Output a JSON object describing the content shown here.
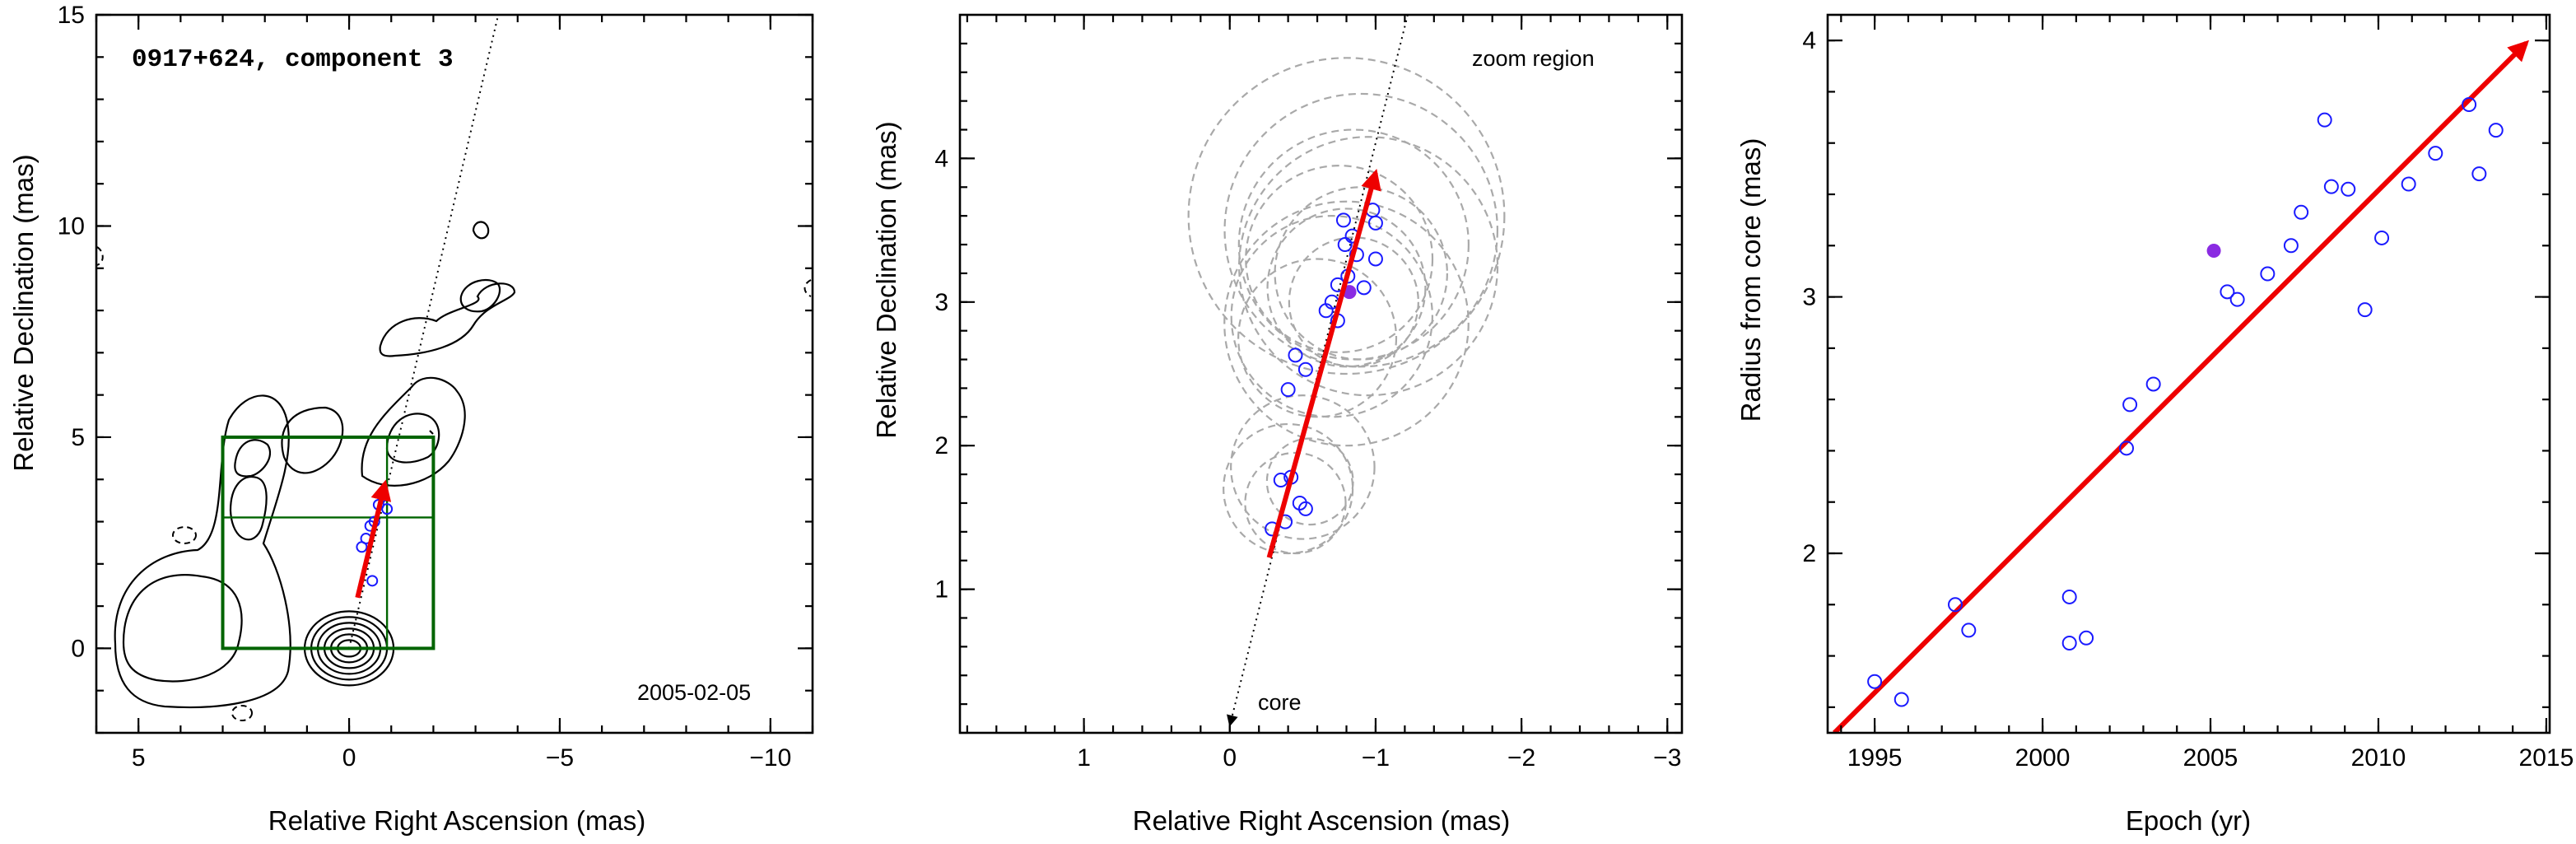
{
  "chart_data": [
    {
      "type": "contour",
      "title": "0917+624, component 3",
      "annotation": "2005-02-05",
      "xlabel": "Relative Right Ascension (mas)",
      "ylabel": "Relative Declination (mas)",
      "xlim": [
        6,
        -11
      ],
      "ylim": [
        -2,
        15
      ],
      "x_ticks": [
        5,
        0,
        -5,
        -10
      ],
      "y_ticks": [
        0,
        5,
        10,
        15
      ],
      "x_tick_labels": [
        "5",
        "0",
        "−5",
        "−10"
      ],
      "y_tick_labels": [
        "0",
        "5",
        "10",
        "15"
      ],
      "zoom_box": {
        "x": [
          3,
          -2
        ],
        "y": [
          0,
          5
        ],
        "crosshair": [
          0.9,
          3.1
        ]
      },
      "trajectory_arrow": {
        "from": [
          -0.2,
          1.2
        ],
        "to": [
          -0.85,
          3.9
        ]
      },
      "jet_axis_line": {
        "from": [
          0,
          0
        ],
        "to": [
          -5.9,
          25
        ]
      },
      "component_positions": [
        {
          "x": -0.8,
          "y": 3.6
        },
        {
          "x": -0.9,
          "y": 3.3
        },
        {
          "x": -0.6,
          "y": 3.0
        },
        {
          "x": -0.4,
          "y": 2.6
        },
        {
          "x": -0.7,
          "y": 3.4
        },
        {
          "x": -0.5,
          "y": 2.9
        },
        {
          "x": -0.3,
          "y": 2.4
        },
        {
          "x": -0.55,
          "y": 1.6
        }
      ]
    },
    {
      "type": "scatter",
      "annotations": [
        "zoom region",
        "core"
      ],
      "xlabel": "Relative Right Ascension (mas)",
      "ylabel": "Relative Declination (mas)",
      "xlim": [
        1.85,
        -3.1
      ],
      "ylim": [
        0,
        5.0
      ],
      "x_ticks": [
        1,
        0,
        -1,
        -2,
        -3
      ],
      "y_ticks": [
        1,
        2,
        3,
        4
      ],
      "x_tick_labels": [
        "1",
        "0",
        "−1",
        "−2",
        "−3"
      ],
      "y_tick_labels": [
        "1",
        "2",
        "3",
        "4"
      ],
      "positions": [
        {
          "x": -0.29,
          "y": 1.42
        },
        {
          "x": -0.38,
          "y": 1.47
        },
        {
          "x": -0.35,
          "y": 1.76
        },
        {
          "x": -0.42,
          "y": 1.78
        },
        {
          "x": -0.48,
          "y": 1.6
        },
        {
          "x": -0.52,
          "y": 1.56
        },
        {
          "x": -0.4,
          "y": 2.39
        },
        {
          "x": -0.45,
          "y": 2.63
        },
        {
          "x": -0.52,
          "y": 2.53
        },
        {
          "x": -0.66,
          "y": 2.94
        },
        {
          "x": -0.7,
          "y": 3.0
        },
        {
          "x": -0.74,
          "y": 2.87
        },
        {
          "x": -0.74,
          "y": 3.12
        },
        {
          "x": -0.81,
          "y": 3.18
        },
        {
          "x": -0.79,
          "y": 3.4
        },
        {
          "x": -0.84,
          "y": 3.46
        },
        {
          "x": -0.87,
          "y": 3.33
        },
        {
          "x": -0.92,
          "y": 3.1
        },
        {
          "x": -0.78,
          "y": 3.57
        },
        {
          "x": -0.98,
          "y": 3.64
        },
        {
          "x": -1.0,
          "y": 3.55
        },
        {
          "x": -1.0,
          "y": 3.3
        }
      ],
      "highlight_position": {
        "x": -0.82,
        "y": 3.07
      },
      "trajectory_arrow": {
        "from": [
          -0.27,
          1.22
        ],
        "to": [
          -1.0,
          3.9
        ]
      },
      "uncertainty_circles": [
        {
          "x": -0.8,
          "y": 3.6,
          "r": 1.1
        },
        {
          "x": -0.9,
          "y": 3.5,
          "r": 0.95
        },
        {
          "x": -0.85,
          "y": 3.4,
          "r": 0.8
        },
        {
          "x": -0.75,
          "y": 3.3,
          "r": 0.65
        },
        {
          "x": -0.8,
          "y": 3.1,
          "r": 0.55
        },
        {
          "x": -0.85,
          "y": 3.0,
          "r": 0.45
        },
        {
          "x": -0.7,
          "y": 2.9,
          "r": 0.7
        },
        {
          "x": -0.9,
          "y": 3.2,
          "r": 0.6
        },
        {
          "x": -0.6,
          "y": 2.75,
          "r": 0.55
        },
        {
          "x": -0.95,
          "y": 3.25,
          "r": 0.9
        },
        {
          "x": -0.8,
          "y": 2.85,
          "r": 0.85
        },
        {
          "x": -0.4,
          "y": 1.7,
          "r": 0.45
        },
        {
          "x": -0.45,
          "y": 1.6,
          "r": 0.35
        },
        {
          "x": -0.5,
          "y": 1.85,
          "r": 0.5
        },
        {
          "x": -0.55,
          "y": 1.75,
          "r": 0.3
        }
      ]
    },
    {
      "type": "scatter",
      "xlabel": "Epoch (yr)",
      "ylabel": "Radius from core (mas)",
      "xlim": [
        1993.6,
        2015.1
      ],
      "ylim": [
        1.3,
        4.1
      ],
      "x_ticks": [
        1995,
        2000,
        2005,
        2010,
        2015
      ],
      "y_ticks": [
        2,
        3,
        4
      ],
      "x_tick_labels": [
        "1995",
        "2000",
        "2005",
        "2010",
        "2015"
      ],
      "y_tick_labels": [
        "2",
        "3",
        "4"
      ],
      "points": [
        {
          "x": 1995.0,
          "y": 1.5
        },
        {
          "x": 1995.8,
          "y": 1.43
        },
        {
          "x": 1997.4,
          "y": 1.8
        },
        {
          "x": 1997.8,
          "y": 1.7
        },
        {
          "x": 2000.8,
          "y": 1.83
        },
        {
          "x": 2000.8,
          "y": 1.65
        },
        {
          "x": 2001.3,
          "y": 1.67
        },
        {
          "x": 2002.5,
          "y": 2.41
        },
        {
          "x": 2002.6,
          "y": 2.58
        },
        {
          "x": 2003.3,
          "y": 2.66
        },
        {
          "x": 2005.5,
          "y": 3.02
        },
        {
          "x": 2005.8,
          "y": 2.99
        },
        {
          "x": 2006.7,
          "y": 3.09
        },
        {
          "x": 2007.4,
          "y": 3.2
        },
        {
          "x": 2007.7,
          "y": 3.33
        },
        {
          "x": 2008.4,
          "y": 3.69
        },
        {
          "x": 2008.6,
          "y": 3.43
        },
        {
          "x": 2009.1,
          "y": 3.42
        },
        {
          "x": 2009.6,
          "y": 2.95
        },
        {
          "x": 2010.1,
          "y": 3.23
        },
        {
          "x": 2010.9,
          "y": 3.44
        },
        {
          "x": 2011.7,
          "y": 3.56
        },
        {
          "x": 2012.7,
          "y": 3.75
        },
        {
          "x": 2013.0,
          "y": 3.48
        },
        {
          "x": 2013.5,
          "y": 3.65
        }
      ],
      "highlight_point": {
        "x": 2005.1,
        "y": 3.18
      },
      "fit_arrow": {
        "from": [
          1993.8,
          1.3
        ],
        "to": [
          2014.4,
          3.99
        ]
      }
    }
  ],
  "colors": {
    "arrow": "#ee0000",
    "points": "#1a1aff",
    "highlight": "#8a2be2",
    "zoom_box": "#006400",
    "circles": "#a9a9a9",
    "axes": "#000000"
  }
}
